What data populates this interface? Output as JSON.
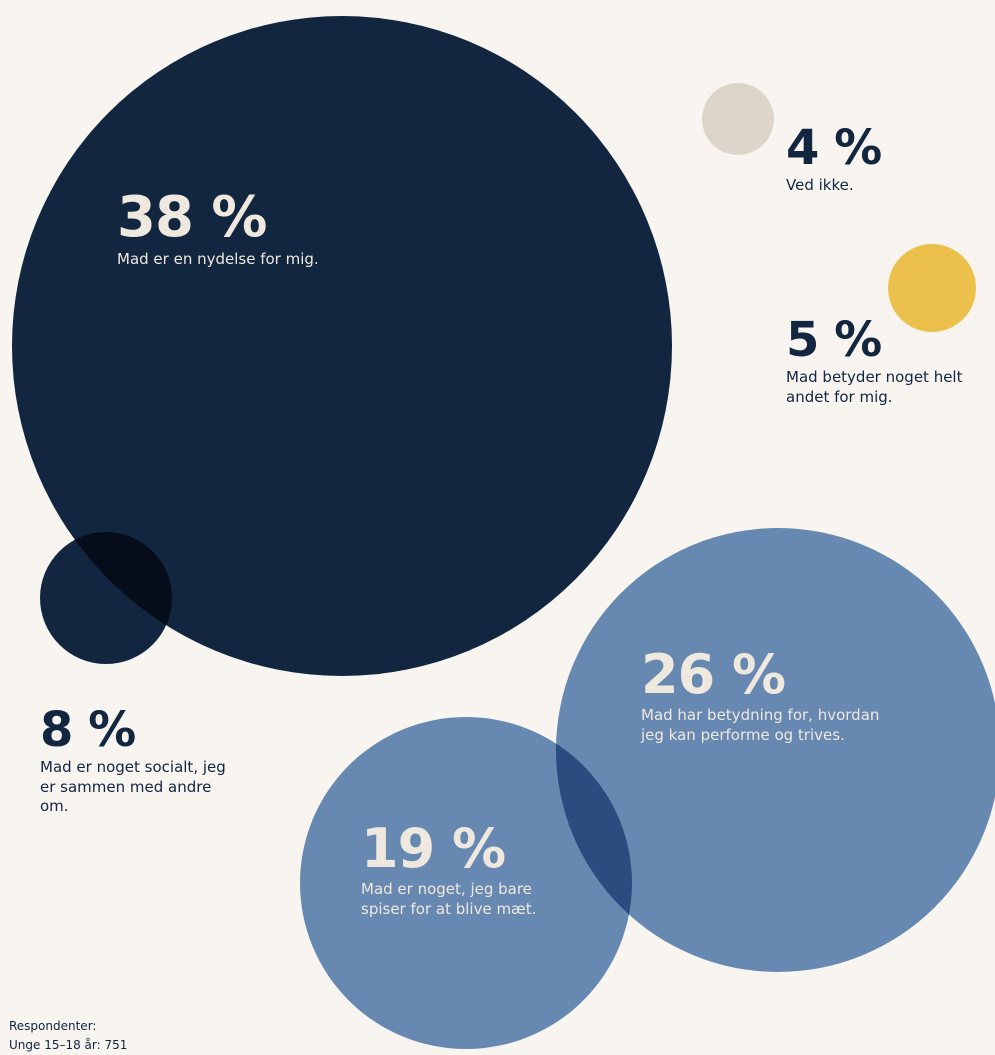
{
  "chart_data": {
    "type": "bubble",
    "colors": {
      "background": "#f8f5f1",
      "dark_navy": "#12263f",
      "steel_blue": "#6789b1",
      "overlap_blue": "#2c4b7f",
      "overlap_dark": "#060d1a",
      "yellow": "#ebc04b",
      "beige": "#ddd5ca"
    },
    "bubbles": [
      {
        "id": "nydelse",
        "value": 38,
        "value_label": "38 %",
        "label": "Mad er en nydelse for mig.",
        "color": "#12263f",
        "text_color": "#efe8df"
      },
      {
        "id": "performe",
        "value": 26,
        "value_label": "26 %",
        "label": "Mad har betydning for, hvordan jeg kan performe og trives.",
        "color": "#6789b1",
        "text_color": "#efe8df"
      },
      {
        "id": "maet",
        "value": 19,
        "value_label": "19 %",
        "label": "Mad er noget, jeg bare spiser for at blive mæt.",
        "color": "#6789b1",
        "text_color": "#efe8df"
      },
      {
        "id": "socialt",
        "value": 8,
        "value_label": "8 %",
        "label": "Mad er noget socialt, jeg er sammen med andre om.",
        "color": "#12263f",
        "text_color": "#12263f"
      },
      {
        "id": "andet",
        "value": 5,
        "value_label": "5 %",
        "label": "Mad betyder noget helt andet for mig.",
        "color": "#ebc04b",
        "text_color": "#12263f"
      },
      {
        "id": "vedikke",
        "value": 4,
        "value_label": "4 %",
        "label": "Ved ikke.",
        "color": "#ddd5ca",
        "text_color": "#12263f"
      }
    ]
  },
  "respondents": {
    "heading": "Respondenter:",
    "line": "Unge 15–18 år: 751"
  }
}
